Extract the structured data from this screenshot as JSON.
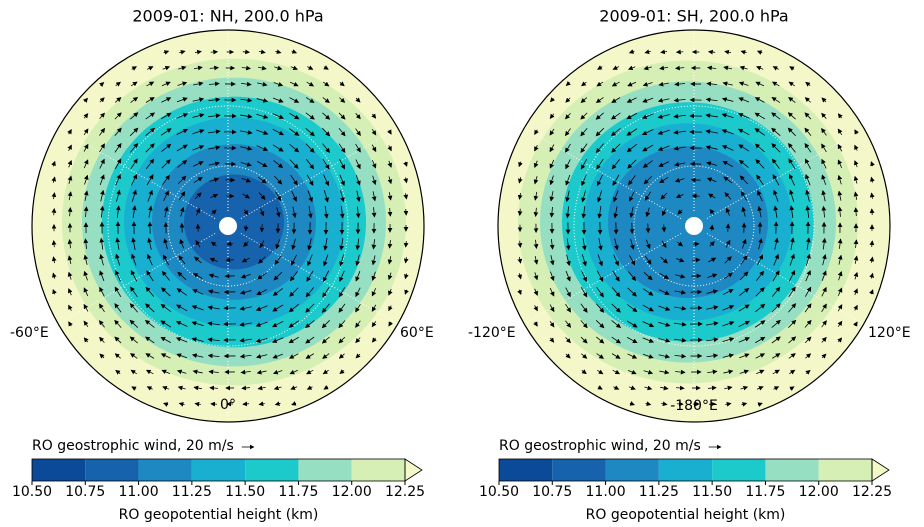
{
  "panels": [
    {
      "title": "2009-01: NH, 200.0 hPa",
      "lon_labels": [
        "-60°E",
        "0°",
        "60°E"
      ],
      "wind_label": "RO geostrophic wind, 20 m/s",
      "colorbar": {
        "ticks": [
          {
            "value": 10.5,
            "label": "10.50"
          },
          {
            "value": 10.75,
            "label": "10.75"
          },
          {
            "value": 11.0,
            "label": "11.00"
          },
          {
            "value": 11.25,
            "label": "11.25"
          },
          {
            "value": 11.5,
            "label": "11.50"
          },
          {
            "value": 11.75,
            "label": "11.75"
          },
          {
            "value": 12.0,
            "label": "12.00"
          },
          {
            "value": 12.25,
            "label": "12.25"
          }
        ],
        "colors": [
          "#0a4a99",
          "#1662ad",
          "#1d88c2",
          "#19afd0",
          "#1cc9cb",
          "#97dfc3",
          "#d6efb4"
        ],
        "extend_color": "#f4f8c8",
        "label": "RO geopotential height (km)"
      }
    },
    {
      "title": "2009-01: SH, 200.0 hPa",
      "lon_labels": [
        "-120°E",
        "-180°E",
        "120°E"
      ],
      "wind_label": "RO geostrophic wind, 20 m/s",
      "colorbar": {
        "ticks": [
          {
            "value": 10.5,
            "label": "10.50"
          },
          {
            "value": 10.75,
            "label": "10.75"
          },
          {
            "value": 11.0,
            "label": "11.00"
          },
          {
            "value": 11.25,
            "label": "11.25"
          },
          {
            "value": 11.5,
            "label": "11.50"
          },
          {
            "value": 11.75,
            "label": "11.75"
          },
          {
            "value": 12.0,
            "label": "12.00"
          },
          {
            "value": 12.25,
            "label": "12.25"
          }
        ],
        "colors": [
          "#0a4a99",
          "#1662ad",
          "#1d88c2",
          "#19afd0",
          "#1cc9cb",
          "#97dfc3",
          "#d6efb4"
        ],
        "extend_color": "#f4f8c8",
        "label": "RO geopotential height (km)"
      }
    }
  ]
}
